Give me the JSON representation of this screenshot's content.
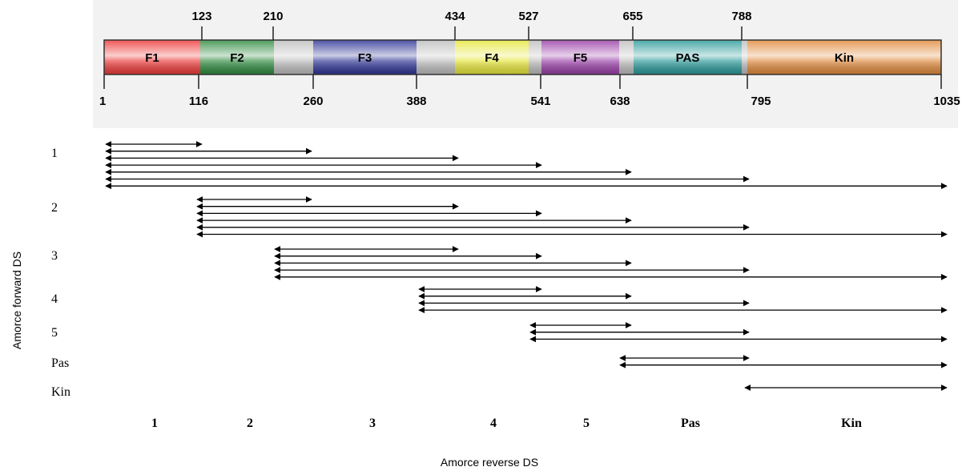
{
  "domain_map": {
    "segments": [
      {
        "label": "F1",
        "color": "#ee3a3a"
      },
      {
        "label": "F2",
        "color": "#2e8b3e"
      },
      {
        "label": "",
        "color": "#bdbdbd"
      },
      {
        "label": "F3",
        "color": "#2f3596"
      },
      {
        "label": "",
        "color": "#bdbdbd"
      },
      {
        "label": "F4",
        "color": "#e6e63a"
      },
      {
        "label": "",
        "color": "#bdbdbd"
      },
      {
        "label": "F5",
        "color": "#9a3fa8"
      },
      {
        "label": "",
        "color": "#bdbdbd"
      },
      {
        "label": "PAS",
        "color": "#2c9a9a"
      },
      {
        "label": "",
        "color": "#bdbdbd"
      },
      {
        "label": "Kin",
        "color": "#e08a3c"
      }
    ],
    "top_ticks": [
      "123",
      "210",
      "434",
      "527",
      "655",
      "788"
    ],
    "bottom_ticks": [
      "1",
      "116",
      "260",
      "388",
      "541",
      "638",
      "795",
      "1035"
    ]
  },
  "primers": {
    "forward_axis_label": "Amorce forward DS",
    "reverse_axis_label": "Amorce reverse DS",
    "forward_primers": [
      "1",
      "2",
      "3",
      "4",
      "5",
      "Pas",
      "Kin"
    ],
    "reverse_primers": [
      "1",
      "2",
      "3",
      "4",
      "5",
      "Pas",
      "Kin"
    ],
    "amplicons": [
      {
        "forward": "1",
        "reverse": "1"
      },
      {
        "forward": "1",
        "reverse": "2"
      },
      {
        "forward": "1",
        "reverse": "3"
      },
      {
        "forward": "1",
        "reverse": "4"
      },
      {
        "forward": "1",
        "reverse": "5"
      },
      {
        "forward": "1",
        "reverse": "Pas"
      },
      {
        "forward": "1",
        "reverse": "Kin"
      },
      {
        "forward": "2",
        "reverse": "2"
      },
      {
        "forward": "2",
        "reverse": "3"
      },
      {
        "forward": "2",
        "reverse": "4"
      },
      {
        "forward": "2",
        "reverse": "5"
      },
      {
        "forward": "2",
        "reverse": "Pas"
      },
      {
        "forward": "2",
        "reverse": "Kin"
      },
      {
        "forward": "3",
        "reverse": "3"
      },
      {
        "forward": "3",
        "reverse": "4"
      },
      {
        "forward": "3",
        "reverse": "5"
      },
      {
        "forward": "3",
        "reverse": "Pas"
      },
      {
        "forward": "3",
        "reverse": "Kin"
      },
      {
        "forward": "4",
        "reverse": "4"
      },
      {
        "forward": "4",
        "reverse": "5"
      },
      {
        "forward": "4",
        "reverse": "Pas"
      },
      {
        "forward": "4",
        "reverse": "Kin"
      },
      {
        "forward": "5",
        "reverse": "5"
      },
      {
        "forward": "5",
        "reverse": "Pas"
      },
      {
        "forward": "5",
        "reverse": "Kin"
      },
      {
        "forward": "Pas",
        "reverse": "Pas"
      },
      {
        "forward": "Pas",
        "reverse": "Kin"
      },
      {
        "forward": "Kin",
        "reverse": "Kin"
      }
    ]
  }
}
